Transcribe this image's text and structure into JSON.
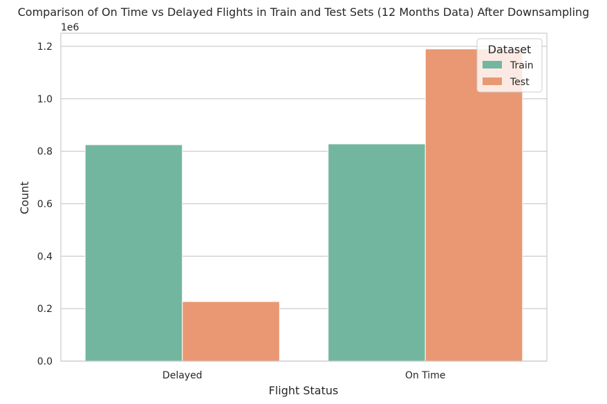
{
  "chart_data": {
    "type": "bar",
    "title": "Comparison of On Time vs Delayed Flights in Train and Test Sets (12 Months Data) After Downsampling",
    "xlabel": "Flight Status",
    "ylabel": "Count",
    "y_multiplier_label": "1e6",
    "categories": [
      "Delayed",
      "On Time"
    ],
    "series": [
      {
        "name": "Train",
        "color": "#73b6a0",
        "values": [
          825000,
          828000
        ]
      },
      {
        "name": "Test",
        "color": "#e99873",
        "values": [
          227000,
          1190000
        ]
      }
    ],
    "ylim": [
      0,
      1250000
    ],
    "y_ticks": [
      0,
      200000,
      400000,
      600000,
      800000,
      1000000,
      1200000
    ],
    "y_tick_labels": [
      "0.0",
      "0.2",
      "0.4",
      "0.6",
      "0.8",
      "1.0",
      "1.2"
    ],
    "grid": true,
    "legend": {
      "title": "Dataset",
      "placement": "top-right"
    }
  }
}
